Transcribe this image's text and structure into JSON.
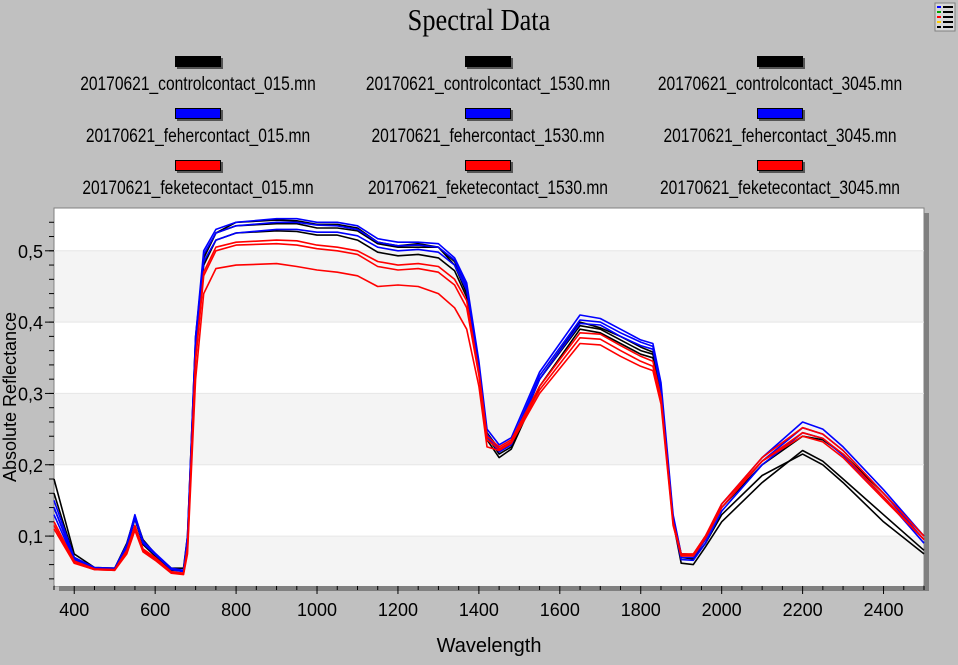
{
  "window": {
    "title": "Spectral Data",
    "menu_icon": "list-legend-icon"
  },
  "chart_data": {
    "type": "line",
    "title": "Spectral Data",
    "xlabel": "Wavelength",
    "ylabel": "Absolute Reflectance",
    "xlim": [
      350,
      2500
    ],
    "ylim": [
      0.03,
      0.56
    ],
    "xticks": [
      "400",
      "600",
      "800",
      "1000",
      "1200",
      "1400",
      "1600",
      "1800",
      "2000",
      "2200",
      "2400"
    ],
    "yticks": [
      "0,1",
      "0,2",
      "0,3",
      "0,4",
      "0,5"
    ],
    "grid": "alternating horizontal bands",
    "legend_position": "top",
    "x": [
      350,
      400,
      450,
      500,
      530,
      550,
      570,
      600,
      640,
      670,
      680,
      700,
      720,
      750,
      800,
      900,
      950,
      1000,
      1050,
      1100,
      1150,
      1200,
      1250,
      1300,
      1340,
      1370,
      1400,
      1420,
      1450,
      1480,
      1550,
      1650,
      1700,
      1750,
      1800,
      1830,
      1850,
      1880,
      1900,
      1930,
      1960,
      2000,
      2100,
      2200,
      2250,
      2300,
      2400,
      2500
    ],
    "series": [
      {
        "name": "20170621_controlcontact_015.mn",
        "color": "#000000",
        "values": [
          0.18,
          0.075,
          0.056,
          0.055,
          0.09,
          0.128,
          0.095,
          0.075,
          0.055,
          0.055,
          0.1,
          0.38,
          0.49,
          0.525,
          0.535,
          0.538,
          0.538,
          0.532,
          0.532,
          0.528,
          0.51,
          0.505,
          0.505,
          0.505,
          0.48,
          0.44,
          0.33,
          0.24,
          0.215,
          0.225,
          0.32,
          0.395,
          0.39,
          0.375,
          0.36,
          0.355,
          0.3,
          0.12,
          0.07,
          0.068,
          0.09,
          0.13,
          0.185,
          0.215,
          0.2,
          0.175,
          0.12,
          0.075
        ]
      },
      {
        "name": "20170621_controlcontact_1530.mn",
        "color": "#000000",
        "values": [
          0.16,
          0.07,
          0.055,
          0.054,
          0.085,
          0.125,
          0.09,
          0.072,
          0.052,
          0.052,
          0.09,
          0.37,
          0.49,
          0.525,
          0.54,
          0.543,
          0.542,
          0.537,
          0.537,
          0.532,
          0.512,
          0.507,
          0.51,
          0.505,
          0.485,
          0.45,
          0.34,
          0.245,
          0.222,
          0.232,
          0.32,
          0.4,
          0.392,
          0.38,
          0.365,
          0.358,
          0.305,
          0.125,
          0.075,
          0.074,
          0.1,
          0.14,
          0.2,
          0.24,
          0.235,
          0.215,
          0.16,
          0.1
        ]
      },
      {
        "name": "20170621_controlcontact_3045.mn",
        "color": "#000000",
        "values": [
          0.14,
          0.068,
          0.055,
          0.054,
          0.084,
          0.124,
          0.088,
          0.072,
          0.052,
          0.052,
          0.088,
          0.36,
          0.48,
          0.515,
          0.525,
          0.528,
          0.527,
          0.522,
          0.522,
          0.515,
          0.498,
          0.493,
          0.495,
          0.49,
          0.472,
          0.435,
          0.33,
          0.235,
          0.21,
          0.222,
          0.31,
          0.39,
          0.385,
          0.37,
          0.355,
          0.35,
          0.3,
          0.12,
          0.062,
          0.06,
          0.085,
          0.12,
          0.175,
          0.22,
          0.205,
          0.18,
          0.13,
          0.08
        ]
      },
      {
        "name": "20170621_fehercontact_015.mn",
        "color": "#0000ff",
        "values": [
          0.15,
          0.07,
          0.056,
          0.055,
          0.088,
          0.13,
          0.093,
          0.076,
          0.055,
          0.052,
          0.1,
          0.38,
          0.5,
          0.53,
          0.54,
          0.545,
          0.545,
          0.54,
          0.54,
          0.535,
          0.517,
          0.512,
          0.512,
          0.51,
          0.49,
          0.455,
          0.345,
          0.25,
          0.228,
          0.238,
          0.33,
          0.41,
          0.405,
          0.39,
          0.375,
          0.37,
          0.315,
          0.13,
          0.075,
          0.074,
          0.1,
          0.145,
          0.21,
          0.26,
          0.25,
          0.225,
          0.165,
          0.1
        ]
      },
      {
        "name": "20170621_fehercontact_1530.mn",
        "color": "#0000ff",
        "values": [
          0.14,
          0.068,
          0.055,
          0.054,
          0.085,
          0.128,
          0.092,
          0.075,
          0.054,
          0.051,
          0.095,
          0.375,
          0.495,
          0.525,
          0.535,
          0.54,
          0.54,
          0.536,
          0.535,
          0.53,
          0.512,
          0.507,
          0.508,
          0.505,
          0.487,
          0.45,
          0.34,
          0.243,
          0.222,
          0.232,
          0.325,
          0.403,
          0.4,
          0.385,
          0.372,
          0.366,
          0.31,
          0.125,
          0.07,
          0.07,
          0.095,
          0.14,
          0.205,
          0.252,
          0.243,
          0.22,
          0.16,
          0.095
        ]
      },
      {
        "name": "20170621_fehercontact_3045.mn",
        "color": "#0000ff",
        "values": [
          0.13,
          0.066,
          0.055,
          0.054,
          0.083,
          0.125,
          0.09,
          0.074,
          0.053,
          0.05,
          0.09,
          0.365,
          0.485,
          0.515,
          0.525,
          0.53,
          0.53,
          0.526,
          0.526,
          0.521,
          0.505,
          0.5,
          0.502,
          0.498,
          0.48,
          0.445,
          0.338,
          0.24,
          0.218,
          0.228,
          0.32,
          0.398,
          0.396,
          0.38,
          0.367,
          0.362,
          0.305,
          0.12,
          0.067,
          0.066,
          0.09,
          0.135,
          0.2,
          0.245,
          0.237,
          0.213,
          0.155,
          0.09
        ]
      },
      {
        "name": "20170621_feketecontact_015.mn",
        "color": "#ff0000",
        "values": [
          0.12,
          0.065,
          0.054,
          0.053,
          0.08,
          0.115,
          0.082,
          0.07,
          0.05,
          0.048,
          0.085,
          0.35,
          0.47,
          0.505,
          0.512,
          0.515,
          0.514,
          0.508,
          0.505,
          0.5,
          0.485,
          0.48,
          0.482,
          0.478,
          0.46,
          0.43,
          0.33,
          0.24,
          0.225,
          0.235,
          0.31,
          0.385,
          0.383,
          0.367,
          0.352,
          0.345,
          0.295,
          0.12,
          0.075,
          0.075,
          0.1,
          0.145,
          0.21,
          0.252,
          0.243,
          0.22,
          0.16,
          0.1
        ]
      },
      {
        "name": "20170621_feketecontact_1530.mn",
        "color": "#ff0000",
        "values": [
          0.115,
          0.063,
          0.053,
          0.052,
          0.078,
          0.112,
          0.08,
          0.068,
          0.049,
          0.047,
          0.08,
          0.345,
          0.465,
          0.5,
          0.508,
          0.51,
          0.508,
          0.503,
          0.5,
          0.495,
          0.478,
          0.473,
          0.475,
          0.47,
          0.452,
          0.42,
          0.325,
          0.235,
          0.222,
          0.232,
          0.305,
          0.378,
          0.376,
          0.36,
          0.345,
          0.338,
          0.29,
          0.118,
          0.072,
          0.072,
          0.097,
          0.14,
          0.205,
          0.245,
          0.237,
          0.215,
          0.155,
          0.095
        ]
      },
      {
        "name": "20170621_feketecontact_3045.mn",
        "color": "#ff0000",
        "values": [
          0.11,
          0.062,
          0.053,
          0.052,
          0.075,
          0.108,
          0.078,
          0.066,
          0.048,
          0.046,
          0.075,
          0.32,
          0.44,
          0.475,
          0.48,
          0.482,
          0.478,
          0.473,
          0.47,
          0.465,
          0.45,
          0.452,
          0.45,
          0.44,
          0.42,
          0.39,
          0.31,
          0.225,
          0.22,
          0.23,
          0.3,
          0.37,
          0.368,
          0.352,
          0.338,
          0.332,
          0.285,
          0.115,
          0.073,
          0.074,
          0.1,
          0.145,
          0.205,
          0.24,
          0.232,
          0.21,
          0.152,
          0.095
        ]
      }
    ]
  }
}
